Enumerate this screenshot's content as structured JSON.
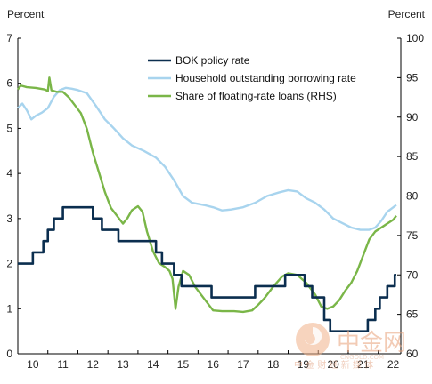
{
  "chart_data": {
    "type": "line",
    "title": "",
    "left_unit": "Percent",
    "right_unit": "Percent",
    "x_ticks": [
      "10",
      "11",
      "12",
      "13",
      "14",
      "15",
      "16",
      "17",
      "18",
      "19",
      "20",
      "21",
      "22"
    ],
    "x_range": [
      2010.0,
      2022.75
    ],
    "y_left": {
      "range": [
        0,
        7
      ],
      "ticks": [
        "0",
        "1",
        "2",
        "3",
        "4",
        "5",
        "6",
        "7"
      ]
    },
    "y_right": {
      "range": [
        60,
        100
      ],
      "ticks": [
        "60",
        "65",
        "70",
        "75",
        "80",
        "85",
        "90",
        "95",
        "100"
      ]
    },
    "legend_position": "top-right",
    "series": [
      {
        "name": "BOK policy rate",
        "axis": "left",
        "color": "#0b2e4f",
        "step": true,
        "points": [
          [
            2010.0,
            2.0
          ],
          [
            2010.5,
            2.25
          ],
          [
            2010.85,
            2.5
          ],
          [
            2011.0,
            2.75
          ],
          [
            2011.2,
            3.0
          ],
          [
            2011.5,
            3.25
          ],
          [
            2012.5,
            3.0
          ],
          [
            2012.8,
            2.75
          ],
          [
            2013.35,
            2.5
          ],
          [
            2014.6,
            2.25
          ],
          [
            2014.8,
            2.0
          ],
          [
            2015.2,
            1.75
          ],
          [
            2015.45,
            1.5
          ],
          [
            2016.45,
            1.25
          ],
          [
            2017.9,
            1.5
          ],
          [
            2018.9,
            1.75
          ],
          [
            2019.55,
            1.5
          ],
          [
            2019.8,
            1.25
          ],
          [
            2020.2,
            0.75
          ],
          [
            2020.4,
            0.5
          ],
          [
            2021.65,
            0.75
          ],
          [
            2021.9,
            1.0
          ],
          [
            2022.05,
            1.25
          ],
          [
            2022.3,
            1.5
          ],
          [
            2022.55,
            1.75
          ],
          [
            2022.6,
            1.75
          ]
        ]
      },
      {
        "name": "Household outstanding borrowing rate",
        "axis": "left",
        "color": "#a8d4ee",
        "step": false,
        "points": [
          [
            2010.0,
            5.45
          ],
          [
            2010.15,
            5.55
          ],
          [
            2010.3,
            5.4
          ],
          [
            2010.45,
            5.2
          ],
          [
            2010.6,
            5.28
          ],
          [
            2010.8,
            5.35
          ],
          [
            2011.0,
            5.45
          ],
          [
            2011.2,
            5.7
          ],
          [
            2011.4,
            5.85
          ],
          [
            2011.6,
            5.9
          ],
          [
            2011.8,
            5.88
          ],
          [
            2012.0,
            5.85
          ],
          [
            2012.3,
            5.78
          ],
          [
            2012.6,
            5.5
          ],
          [
            2012.9,
            5.2
          ],
          [
            2013.2,
            5.0
          ],
          [
            2013.5,
            4.78
          ],
          [
            2013.8,
            4.62
          ],
          [
            2014.2,
            4.5
          ],
          [
            2014.6,
            4.35
          ],
          [
            2014.9,
            4.15
          ],
          [
            2015.2,
            3.85
          ],
          [
            2015.5,
            3.5
          ],
          [
            2015.8,
            3.35
          ],
          [
            2016.2,
            3.3
          ],
          [
            2016.5,
            3.25
          ],
          [
            2016.8,
            3.18
          ],
          [
            2017.1,
            3.2
          ],
          [
            2017.5,
            3.25
          ],
          [
            2017.9,
            3.35
          ],
          [
            2018.3,
            3.5
          ],
          [
            2018.7,
            3.58
          ],
          [
            2019.0,
            3.63
          ],
          [
            2019.3,
            3.6
          ],
          [
            2019.6,
            3.45
          ],
          [
            2019.9,
            3.35
          ],
          [
            2020.2,
            3.2
          ],
          [
            2020.5,
            3.0
          ],
          [
            2020.8,
            2.9
          ],
          [
            2021.1,
            2.8
          ],
          [
            2021.4,
            2.75
          ],
          [
            2021.7,
            2.75
          ],
          [
            2021.9,
            2.8
          ],
          [
            2022.1,
            2.95
          ],
          [
            2022.3,
            3.15
          ],
          [
            2022.5,
            3.25
          ],
          [
            2022.6,
            3.3
          ]
        ]
      },
      {
        "name": "Share of floating-rate loans (RHS)",
        "axis": "right",
        "color": "#7ab648",
        "step": false,
        "points": [
          [
            2010.0,
            93.5
          ],
          [
            2010.1,
            94.0
          ],
          [
            2010.3,
            93.8
          ],
          [
            2010.6,
            93.7
          ],
          [
            2010.9,
            93.5
          ],
          [
            2011.0,
            93.3
          ],
          [
            2011.05,
            95.0
          ],
          [
            2011.12,
            93.4
          ],
          [
            2011.3,
            93.2
          ],
          [
            2011.5,
            93.2
          ],
          [
            2011.7,
            92.5
          ],
          [
            2011.9,
            91.5
          ],
          [
            2012.1,
            90.5
          ],
          [
            2012.3,
            88.5
          ],
          [
            2012.5,
            85.5
          ],
          [
            2012.7,
            83.0
          ],
          [
            2012.9,
            80.5
          ],
          [
            2013.1,
            78.5
          ],
          [
            2013.3,
            77.5
          ],
          [
            2013.5,
            76.5
          ],
          [
            2013.65,
            77.2
          ],
          [
            2013.8,
            78.2
          ],
          [
            2014.0,
            78.7
          ],
          [
            2014.15,
            78.0
          ],
          [
            2014.3,
            75.5
          ],
          [
            2014.5,
            73.0
          ],
          [
            2014.7,
            71.5
          ],
          [
            2014.9,
            71.0
          ],
          [
            2015.05,
            70.5
          ],
          [
            2015.15,
            69.5
          ],
          [
            2015.25,
            65.7
          ],
          [
            2015.35,
            68.5
          ],
          [
            2015.5,
            70.5
          ],
          [
            2015.7,
            70.0
          ],
          [
            2015.9,
            68.5
          ],
          [
            2016.1,
            67.5
          ],
          [
            2016.3,
            66.5
          ],
          [
            2016.5,
            65.5
          ],
          [
            2016.8,
            65.4
          ],
          [
            2017.2,
            65.4
          ],
          [
            2017.5,
            65.3
          ],
          [
            2017.8,
            65.5
          ],
          [
            2018.0,
            66.2
          ],
          [
            2018.2,
            67.0
          ],
          [
            2018.5,
            68.5
          ],
          [
            2018.8,
            69.8
          ],
          [
            2019.0,
            70.2
          ],
          [
            2019.3,
            70.0
          ],
          [
            2019.6,
            69.0
          ],
          [
            2019.9,
            67.5
          ],
          [
            2020.1,
            66.0
          ],
          [
            2020.3,
            65.7
          ],
          [
            2020.5,
            66.0
          ],
          [
            2020.7,
            66.8
          ],
          [
            2020.9,
            68.0
          ],
          [
            2021.1,
            69.0
          ],
          [
            2021.3,
            70.5
          ],
          [
            2021.5,
            72.5
          ],
          [
            2021.7,
            74.5
          ],
          [
            2021.9,
            75.5
          ],
          [
            2022.1,
            76.0
          ],
          [
            2022.3,
            76.5
          ],
          [
            2022.5,
            77.0
          ],
          [
            2022.6,
            77.5
          ]
        ]
      }
    ]
  },
  "watermark": {
    "title": "中金网",
    "subtitle": "中 金 财 经 新 媒 体",
    "url": "CNGOLD.COM"
  }
}
